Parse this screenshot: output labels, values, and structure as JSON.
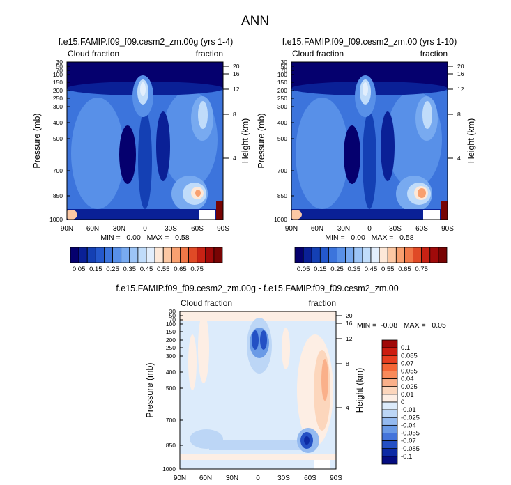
{
  "chart_data": {
    "type": "heatmap",
    "title": "ANN",
    "panels": [
      {
        "id": "model-test",
        "title": "f.e15.FAMIP.f09_f09.cesm2_zm.00g (yrs 1-4)",
        "left_label": "Cloud fraction",
        "right_label": "fraction",
        "xlabels": [
          "90N",
          "60N",
          "30N",
          "0",
          "30S",
          "60S",
          "90S"
        ],
        "xvalues": [
          90,
          60,
          30,
          0,
          -30,
          -60,
          -90
        ],
        "ylabel": "Pressure (mb)",
        "y2label": "Height (km)",
        "pressure_ticks": [
          30,
          50,
          70,
          100,
          150,
          200,
          250,
          300,
          400,
          500,
          700,
          850,
          1000
        ],
        "height_ticks": [
          20,
          16,
          12,
          8,
          4
        ],
        "min_text": "MIN =   0.00   MAX =   0.58",
        "min": 0.0,
        "max": 0.58
      },
      {
        "id": "model-control",
        "title": "f.e15.FAMIP.f09_f09.cesm2_zm.00 (yrs 1-10)",
        "left_label": "Cloud fraction",
        "right_label": "fraction",
        "xlabels": [
          "90N",
          "60N",
          "30N",
          "0",
          "30S",
          "60S",
          "90S"
        ],
        "xvalues": [
          90,
          60,
          30,
          0,
          -30,
          -60,
          -90
        ],
        "ylabel": "Pressure (mb)",
        "y2label": "Height (km)",
        "pressure_ticks": [
          30,
          50,
          70,
          100,
          150,
          200,
          250,
          300,
          400,
          500,
          700,
          850,
          1000
        ],
        "height_ticks": [
          20,
          16,
          12,
          8,
          4
        ],
        "min_text": "MIN =   0.00   MAX =   0.58",
        "min": 0.0,
        "max": 0.58
      },
      {
        "id": "difference",
        "title": "f.e15.FAMIP.f09_f09.cesm2_zm.00g - f.e15.FAMIP.f09_f09.cesm2_zm.00",
        "left_label": "Cloud fraction",
        "right_label": "fraction",
        "xlabels": [
          "90N",
          "60N",
          "30N",
          "0",
          "30S",
          "60S",
          "90S"
        ],
        "xvalues": [
          90,
          60,
          30,
          0,
          -30,
          -60,
          -90
        ],
        "ylabel": "Pressure (mb)",
        "y2label": "Height (km)",
        "pressure_ticks": [
          30,
          50,
          70,
          100,
          150,
          200,
          250,
          300,
          400,
          500,
          700,
          850,
          1000
        ],
        "height_ticks": [
          20,
          16,
          12,
          8,
          4
        ],
        "min_text": "MIN =  -0.08   MAX =   0.05",
        "min": -0.08,
        "max": 0.05
      }
    ],
    "colorbar_main": {
      "orientation": "horizontal",
      "labels": [
        "0.05",
        "0.15",
        "0.25",
        "0.35",
        "0.45",
        "0.55",
        "0.65",
        "0.75"
      ],
      "colors": [
        "#05006e",
        "#0a2096",
        "#1440b4",
        "#2458cc",
        "#3c74dc",
        "#5890e8",
        "#78aaf0",
        "#9cc4f6",
        "#c0dcfa",
        "#e2eefc",
        "#fde8d8",
        "#fcc8a4",
        "#f8a070",
        "#f07848",
        "#e04a26",
        "#c82214",
        "#a00a0a",
        "#780404"
      ]
    },
    "colorbar_diff": {
      "orientation": "vertical",
      "labels": [
        "0.1",
        "0.085",
        "0.07",
        "0.055",
        "0.04",
        "0.025",
        "0.01",
        "0",
        "-0.01",
        "-0.025",
        "-0.04",
        "-0.055",
        "-0.07",
        "-0.085",
        "-0.1"
      ],
      "colors": [
        "#a00808",
        "#cc1c10",
        "#e83e20",
        "#f46636",
        "#f88a5a",
        "#fab08a",
        "#fcd6bc",
        "#fdeee4",
        "#dcebfb",
        "#bcd6f6",
        "#94baf0",
        "#6a9ae6",
        "#4474da",
        "#2450c4",
        "#0c2aa4",
        "#040c80"
      ]
    }
  }
}
